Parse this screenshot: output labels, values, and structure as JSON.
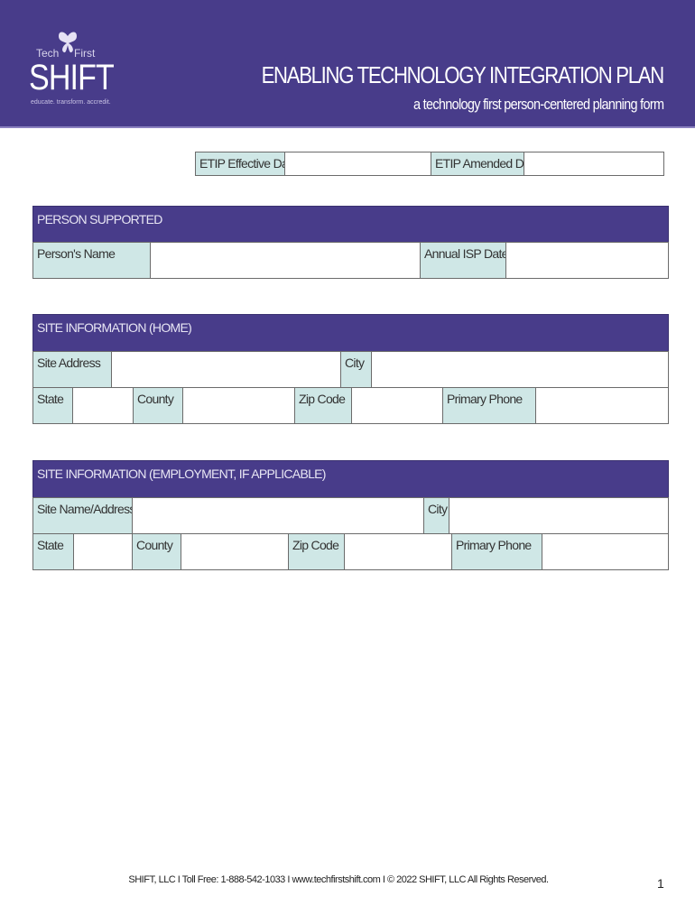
{
  "header": {
    "logo": {
      "tech": "Tech",
      "first": "First",
      "brand": "SHIFT",
      "tagline": "educate. transform. accredit."
    },
    "title": "ENABLING TECHNOLOGY INTEGRATION PLAN",
    "subtitle": "a technology first person-centered planning form"
  },
  "dates": {
    "effective_label": "ETIP Effective Date",
    "effective_value": "",
    "amended_label": "ETIP Amended Date",
    "amended_value": ""
  },
  "person": {
    "title": "PERSON SUPPORTED",
    "name_label": "Person's Name",
    "name_value": "",
    "isp_label": "Annual ISP Date",
    "isp_value": ""
  },
  "home": {
    "title": "SITE INFORMATION (HOME)",
    "address_label": "Site Address",
    "city_label": "City",
    "state_label": "State",
    "county_label": "County",
    "zip_label": "Zip Code",
    "phone_label": "Primary Phone"
  },
  "employment": {
    "title": "SITE INFORMATION (EMPLOYMENT, IF APPLICABLE)",
    "address_label": "Site Name/Address",
    "city_label": "City",
    "state_label": "State",
    "county_label": "County",
    "zip_label": "Zip Code",
    "phone_label": "Primary Phone"
  },
  "footer": {
    "text": "SHIFT, LLC I Toll Free: 1-888-542-1033 I www.techfirstshift.com I © 2022 SHIFT, LLC All Rights Reserved.",
    "page_number": "1"
  },
  "colors": {
    "header": "#483c8a",
    "label_cell": "#cfe7e6"
  }
}
